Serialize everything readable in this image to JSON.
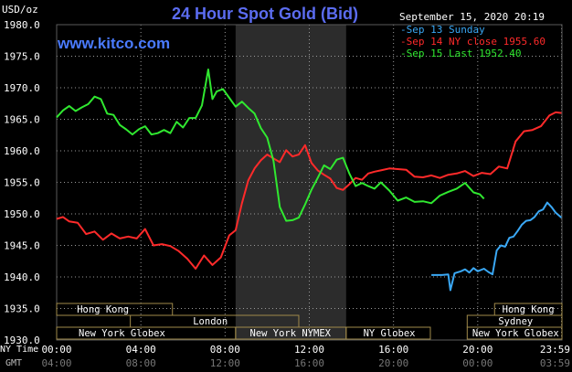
{
  "header": {
    "title": "24 Hour Spot Gold (Bid)",
    "units": "USD/oz",
    "timestamp": "September 15, 2020 20:19",
    "website": "www.kitco.com"
  },
  "legend": [
    {
      "label": "Sep 13 Sunday",
      "color": "#3aa8f5"
    },
    {
      "label": "Sep 14 NY close 1955.60",
      "color": "#ff2a2a"
    },
    {
      "label": "Sep 15 Last 1952.40",
      "color": "#30e830"
    }
  ],
  "colors": {
    "background": "#000000",
    "grid": "#9a9a9a",
    "title": "#5b6cf0",
    "session_bar": "#a08a4a",
    "highlight_band": "#4a4a4a"
  },
  "chart_data": {
    "type": "line",
    "ylim": [
      1930,
      1980
    ],
    "xlim": [
      0,
      24
    ],
    "y_ticks": [
      "1930.0",
      "1935.0",
      "1940.0",
      "1945.0",
      "1950.0",
      "1955.0",
      "1960.0",
      "1965.0",
      "1970.0",
      "1975.0",
      "1980.0"
    ],
    "y_tick_values": [
      1930,
      1935,
      1940,
      1945,
      1950,
      1955,
      1960,
      1965,
      1970,
      1975,
      1980
    ],
    "x_ticks_ny": [
      "00:00",
      "04:00",
      "08:00",
      "12:00",
      "16:00",
      "20:00",
      "23:59"
    ],
    "x_ticks_gmt": [
      "04:00",
      "08:00",
      "12:00",
      "16:00",
      "20:00",
      "00:00",
      "03:59"
    ],
    "x_tick_hours": [
      0,
      4,
      8,
      12,
      16,
      20,
      23.98
    ],
    "x_row_labels": [
      "NY Time",
      "GMT"
    ],
    "highlight_hours": [
      8.5,
      13.75
    ],
    "session_rows": [
      {
        "label": "Hong Kong",
        "spans": [
          [
            0,
            5.5
          ],
          [
            20.8,
            24
          ]
        ]
      },
      {
        "label": "London",
        "spans": [
          [
            3.5,
            11.5
          ]
        ]
      },
      {
        "label": "Sydney",
        "spans": [
          [
            19.5,
            24
          ]
        ]
      },
      {
        "label": "New York Globex",
        "spans": [
          [
            0,
            8.5
          ],
          [
            13.75,
            17.75
          ],
          [
            19.5,
            24
          ]
        ]
      },
      {
        "label": "New York NYMEX",
        "spans": [
          [
            8.5,
            13.75
          ]
        ]
      }
    ],
    "session_layout": {
      "rows": [
        [
          0
        ],
        [
          1,
          2
        ],
        [
          3,
          4
        ]
      ],
      "labels": [
        {
          "row": 0,
          "text": "Hong Kong",
          "hour": 2.2
        },
        {
          "row": 0,
          "text": "Hong Kong",
          "hour": 22.4
        },
        {
          "row": 1,
          "text": "London",
          "hour": 7.3
        },
        {
          "row": 1,
          "text": "Sydney",
          "hour": 21.8
        },
        {
          "row": 2,
          "text": "New York Globex",
          "hour": 3.1
        },
        {
          "row": 2,
          "text": "New York NYMEX",
          "hour": 11.1
        },
        {
          "row": 2,
          "text": "NY Globex",
          "hour": 15.8
        },
        {
          "row": 2,
          "text": "New York Globex",
          "hour": 21.8
        }
      ]
    },
    "series": [
      {
        "name": "Sep 13 Sunday",
        "color": "#3aa8f5",
        "x": [
          17.8,
          18.3,
          18.6,
          18.7,
          18.9,
          19.2,
          19.4,
          19.6,
          19.8,
          20.0,
          20.3,
          20.5,
          20.7,
          20.9,
          21.1,
          21.3,
          21.5,
          21.7,
          21.9,
          22.1,
          22.3,
          22.5,
          22.7,
          22.9,
          23.1,
          23.3,
          23.5,
          23.7,
          23.98
        ],
        "y": [
          1940.3,
          1940.3,
          1940.4,
          1937.9,
          1940.6,
          1940.9,
          1941.2,
          1940.7,
          1941.4,
          1940.9,
          1941.3,
          1940.8,
          1940.4,
          1944.2,
          1945.0,
          1944.8,
          1946.2,
          1946.4,
          1947.3,
          1948.3,
          1948.9,
          1949.0,
          1949.5,
          1950.4,
          1950.7,
          1951.8,
          1951.1,
          1950.2,
          1949.4
        ]
      },
      {
        "name": "Sep 14 NY close 1955.60",
        "color": "#ff2a2a",
        "x": [
          0.0,
          0.3,
          0.6,
          1.0,
          1.4,
          1.8,
          2.2,
          2.6,
          3.0,
          3.4,
          3.8,
          4.2,
          4.6,
          5.0,
          5.4,
          5.8,
          6.2,
          6.6,
          7.0,
          7.4,
          7.8,
          8.2,
          8.5,
          8.8,
          9.1,
          9.4,
          9.7,
          10.0,
          10.3,
          10.6,
          10.9,
          11.2,
          11.5,
          11.8,
          12.1,
          12.4,
          12.7,
          13.0,
          13.3,
          13.6,
          13.9,
          14.2,
          14.5,
          14.8,
          15.1,
          15.4,
          15.8,
          16.2,
          16.6,
          17.0,
          17.4,
          17.8,
          18.2,
          18.6,
          19.0,
          19.4,
          19.8,
          20.2,
          20.6,
          21.0,
          21.4,
          21.8,
          22.2,
          22.6,
          23.0,
          23.4,
          23.7,
          23.98
        ],
        "y": [
          1949.2,
          1949.5,
          1948.8,
          1948.6,
          1946.8,
          1947.2,
          1945.9,
          1946.9,
          1946.1,
          1946.4,
          1946.1,
          1947.6,
          1945.0,
          1945.2,
          1944.9,
          1944.1,
          1942.9,
          1941.3,
          1943.4,
          1941.9,
          1943.1,
          1946.6,
          1947.4,
          1951.7,
          1955.3,
          1957.2,
          1958.5,
          1959.4,
          1958.8,
          1958.2,
          1960.1,
          1959.1,
          1959.4,
          1960.9,
          1958.1,
          1956.9,
          1956.2,
          1955.6,
          1954.1,
          1953.8,
          1954.7,
          1955.7,
          1955.4,
          1956.4,
          1956.7,
          1956.9,
          1957.2,
          1957.1,
          1957.0,
          1955.9,
          1955.8,
          1956.1,
          1955.7,
          1956.2,
          1956.4,
          1956.8,
          1956.0,
          1956.5,
          1956.3,
          1957.5,
          1957.2,
          1961.5,
          1963.1,
          1963.3,
          1963.9,
          1965.6,
          1966.1,
          1966.0
        ]
      },
      {
        "name": "Sep 15 Last 1952.40",
        "color": "#30e830",
        "x": [
          0.0,
          0.3,
          0.6,
          0.9,
          1.2,
          1.5,
          1.8,
          2.1,
          2.4,
          2.7,
          3.0,
          3.3,
          3.6,
          3.9,
          4.2,
          4.5,
          4.8,
          5.1,
          5.4,
          5.7,
          6.0,
          6.3,
          6.6,
          6.9,
          7.2,
          7.4,
          7.6,
          7.9,
          8.2,
          8.5,
          8.8,
          9.1,
          9.4,
          9.7,
          10.0,
          10.3,
          10.6,
          10.9,
          11.2,
          11.5,
          11.8,
          12.1,
          12.4,
          12.7,
          13.0,
          13.3,
          13.6,
          13.9,
          14.2,
          14.5,
          14.8,
          15.1,
          15.4,
          15.8,
          16.2,
          16.6,
          17.0,
          17.4,
          17.8,
          18.2,
          18.6,
          19.0,
          19.4,
          19.8,
          20.1,
          20.3
        ],
        "y": [
          1965.3,
          1966.4,
          1967.1,
          1966.3,
          1966.9,
          1967.4,
          1968.6,
          1968.2,
          1965.9,
          1965.7,
          1964.1,
          1963.4,
          1962.6,
          1963.4,
          1963.9,
          1962.6,
          1962.8,
          1963.3,
          1962.8,
          1964.6,
          1963.7,
          1965.2,
          1965.2,
          1967.2,
          1972.9,
          1968.2,
          1969.4,
          1969.8,
          1968.4,
          1967.0,
          1967.8,
          1966.8,
          1965.9,
          1963.6,
          1962.1,
          1958.4,
          1951.1,
          1948.9,
          1949.0,
          1949.4,
          1951.5,
          1953.8,
          1955.7,
          1957.7,
          1957.1,
          1958.6,
          1958.9,
          1956.4,
          1954.4,
          1954.9,
          1954.4,
          1954.0,
          1955.0,
          1953.7,
          1952.1,
          1952.6,
          1951.9,
          1952.0,
          1951.7,
          1952.9,
          1953.5,
          1954.0,
          1954.9,
          1953.4,
          1953.1,
          1952.4
        ]
      }
    ]
  }
}
